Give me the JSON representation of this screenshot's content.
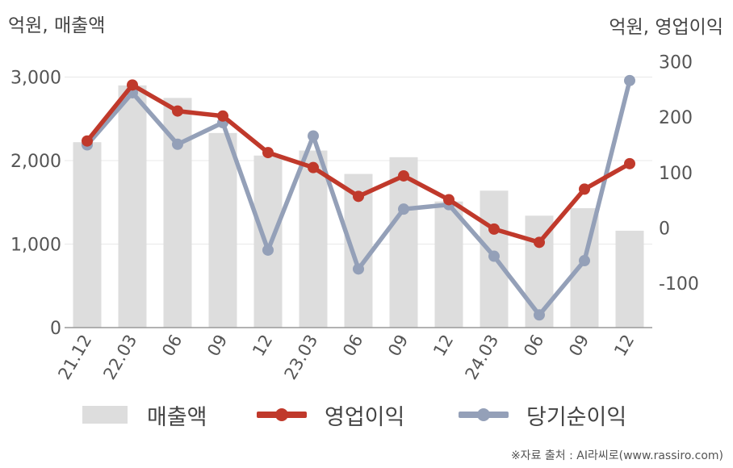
{
  "units": {
    "left": "억원, 매출액",
    "right": "억원, 영업이익"
  },
  "source": "※자료 출처 : AI라씨로(www.rassiro.com)",
  "colors": {
    "bar": "#dddddd",
    "op_income": "#c0392b",
    "net_income": "#94a0b8",
    "axis": "#999999",
    "grid": "#e8e8e8"
  },
  "chart_data": {
    "type": "bar+line",
    "categories": [
      "21.12",
      "22.03",
      "06",
      "09",
      "12",
      "23.03",
      "06",
      "09",
      "12",
      "24.03",
      "06",
      "09",
      "12"
    ],
    "left_axis": {
      "ticks": [
        "0",
        "1,000",
        "2,000",
        "3,000"
      ],
      "tick_values": [
        0,
        1000,
        2000,
        3000
      ],
      "ylim": [
        0,
        3000
      ]
    },
    "right_axis": {
      "ticks": [
        "-100",
        "0",
        "100",
        "200",
        "300"
      ],
      "tick_values": [
        -100,
        0,
        100,
        200,
        300
      ]
    },
    "series": [
      {
        "name": "매출액",
        "type": "bar",
        "axis": "left",
        "values": [
          2220,
          2900,
          2750,
          2330,
          2060,
          2120,
          1840,
          2040,
          1510,
          1640,
          1340,
          1430,
          1160
        ]
      },
      {
        "name": "영업이익",
        "type": "line",
        "axis": "right",
        "values": [
          157,
          258,
          211,
          202,
          136,
          109,
          57,
          94,
          51,
          -2,
          -26,
          70,
          116
        ]
      },
      {
        "name": "당기순이익",
        "type": "line",
        "axis": "right",
        "values": [
          150,
          244,
          151,
          190,
          -40,
          166,
          -74,
          34,
          42,
          -51,
          -157,
          -59,
          266
        ]
      }
    ],
    "grid": true,
    "legend_position": "bottom"
  }
}
